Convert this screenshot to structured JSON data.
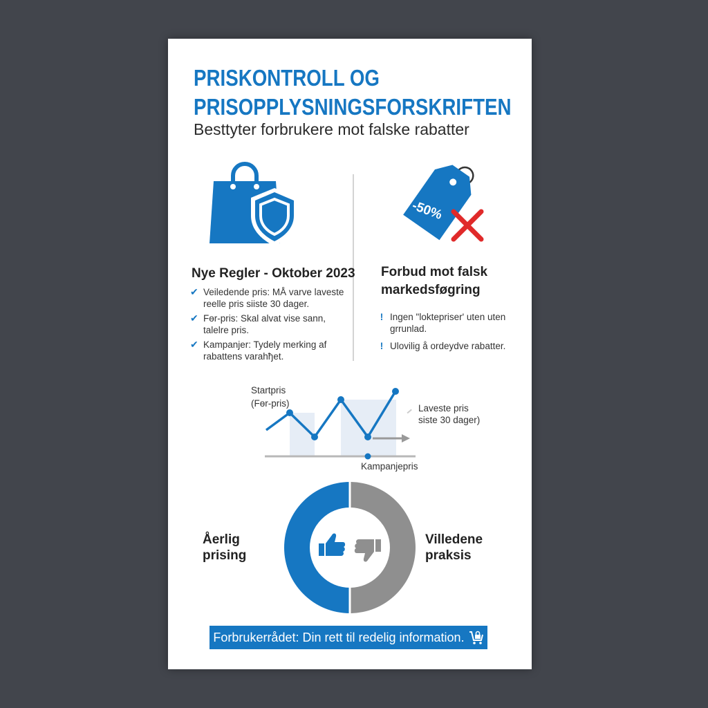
{
  "header": {
    "title_line1": "PRISKONTROLL OG",
    "title_line2": "PRISOPPLYSNINGSFORSKRIFTEN",
    "subtitle": "Besttyter forbrukere mot falske rabatter"
  },
  "left_section": {
    "icon": "shopping-bag-shield-icon",
    "heading": "Nye Regler - Oktober 2023",
    "items": [
      {
        "icon": "check-circle-icon",
        "text": "Veiledende pris: MÅ varve laveste reelle pris siiste 30 dager."
      },
      {
        "icon": "check-circle-icon",
        "text": "Fөr-pris: Skal alvat vise sann, talelre pris."
      },
      {
        "icon": "check-circle-icon",
        "text": "Kampanjer: Tydely merking af rabattens varahђet."
      }
    ]
  },
  "right_section": {
    "icon": "price-tag-cross-icon",
    "tag_text": "-50%",
    "heading_line1": "Forbud mot falsk",
    "heading_line2": "markedsføgring",
    "items": [
      {
        "icon": "exclamation-icon",
        "text": "Ingen \"loktepriser' uten uten grrunlad."
      },
      {
        "icon": "exclamation-icon",
        "text": "Ulovilig å ordeydve rabatter."
      }
    ]
  },
  "price_chart": {
    "start_label_line1": "Startpris",
    "start_label_line2": "(Fөr-pris)",
    "lowest_label_line1": "Laveste pris",
    "lowest_label_line2": "siste 30 dager)",
    "campaign_label": "Kampanjepris"
  },
  "donut": {
    "left_label_line1": "Åerlig",
    "left_label_line2": "prising",
    "right_label_line1": "Villedene",
    "right_label_line2": "praksis",
    "left_share": 0.5,
    "right_share": 0.5,
    "left_color": "#1677c2",
    "right_color": "#8f8f8f",
    "left_icon": "thumbs-up-icon",
    "right_icon": "thumbs-down-icon"
  },
  "footer": {
    "text": "Forbrukerrådet: Din rett til redelig information.",
    "icon": "shopping-cart-lock-icon"
  },
  "colors": {
    "accent": "#1677c2",
    "background": "#42454c",
    "alert": "#e02a2a"
  }
}
